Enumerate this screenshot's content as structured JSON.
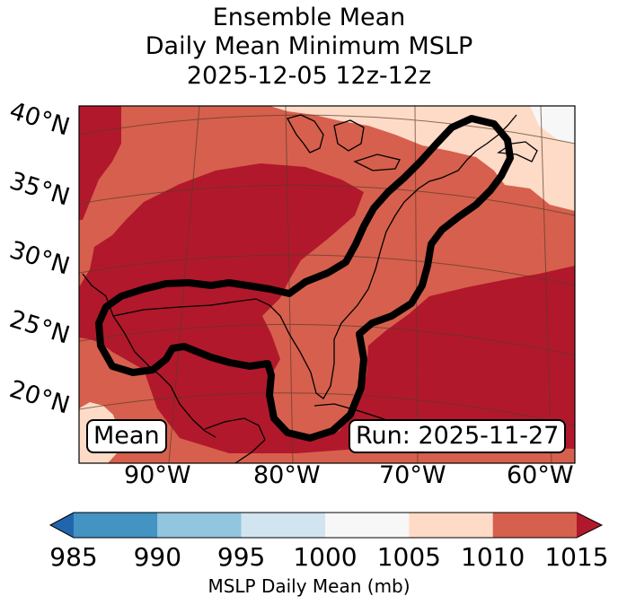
{
  "title": {
    "line1": "Ensemble Mean",
    "line2": "Daily Mean Minimum MSLP",
    "line3": "2025-12-05 12z-12z"
  },
  "map": {
    "lat_labels": [
      "40°N",
      "35°N",
      "30°N",
      "25°N",
      "20°N"
    ],
    "lon_labels": [
      "90°W",
      "80°W",
      "70°W",
      "60°W"
    ],
    "left_badge": "Mean",
    "right_badge": "Run: 2025-11-27"
  },
  "colorbar": {
    "bounds": [
      985,
      990,
      995,
      1000,
      1005,
      1010,
      1015
    ],
    "tick_labels": [
      "985",
      "990",
      "995",
      "1000",
      "1005",
      "1010",
      "1015"
    ],
    "colors": [
      "#4393c3",
      "#92c5de",
      "#d1e5f0",
      "#f7f7f7",
      "#fddbc7",
      "#d6604d",
      "#b2182b"
    ],
    "under_color": "#2166ac",
    "over_color": "#b2182b",
    "label": "MSLP Daily Mean (mb)",
    "extend": "both"
  }
}
